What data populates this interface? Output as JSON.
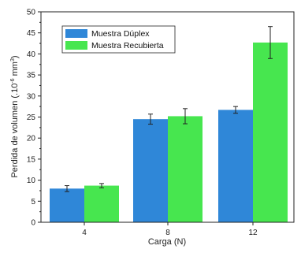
{
  "chart_data": {
    "type": "bar",
    "title": "",
    "xlabel": "Carga (N)",
    "ylabel": "Perdida de volumen (.10",
    "ylabel_exponent": "-6",
    "ylabel_unit": "mm",
    "ylabel_unit_exponent": "3",
    "ylabel_close": ")",
    "categories": [
      "4",
      "8",
      "12"
    ],
    "ylim": [
      0,
      50
    ],
    "yticks": [
      "0",
      "5",
      "10",
      "15",
      "20",
      "25",
      "30",
      "35",
      "40",
      "45",
      "50"
    ],
    "legend_position": "top-left",
    "grid": false,
    "series": [
      {
        "name": "Muestra Dúplex",
        "color": "#2f87d8",
        "values": [
          8.0,
          24.5,
          26.7
        ],
        "errors": [
          0.7,
          1.2,
          0.8
        ]
      },
      {
        "name": "Muestra Recubierta",
        "color": "#47e64f",
        "values": [
          8.7,
          25.2,
          42.7
        ],
        "errors": [
          0.5,
          1.8,
          3.8
        ]
      }
    ]
  }
}
